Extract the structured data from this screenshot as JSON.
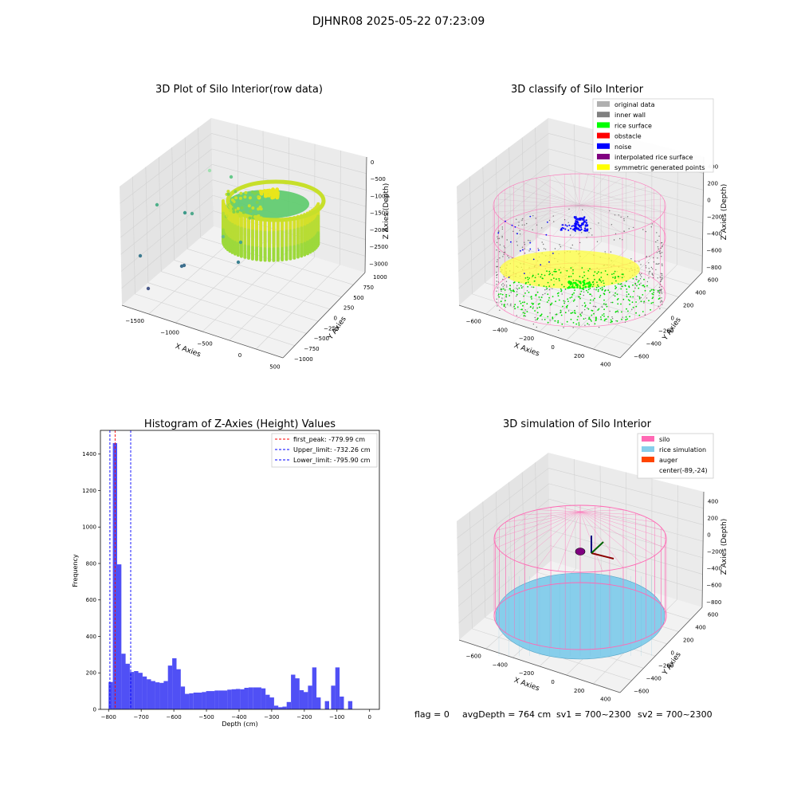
{
  "figure": {
    "suptitle": "DJHNR08 2025-05-22 07:23:09",
    "footer": {
      "flag": "flag = 0",
      "avg_depth": "avgDepth = 764 cm",
      "sv1": "sv1 = 700~2300",
      "sv2": "sv2 = 700~2300"
    }
  },
  "colors": {
    "silo_pink": "#ff69b4",
    "rice_green": "#00ff00",
    "noise_blue": "#0000ff",
    "obstacle_red": "#ff0000",
    "inner_wall_gray": "#808080",
    "original_gray": "#b0b0b0",
    "interpolated_purple": "#800080",
    "symmetric_yellow": "#ffff00",
    "rice_sim": "#87ceeb",
    "auger": "#ff4500",
    "hist_bar": "#5050f5"
  },
  "chart_data": [
    {
      "id": "raw",
      "type": "scatter",
      "title": "3D Plot of Silo Interior(row data)",
      "xlabel": "X Axies",
      "ylabel": "Y Axies",
      "zlabel": "Z Axies (Depth)",
      "xticks": [
        "−1500",
        "−1000",
        "−500",
        "0",
        "500"
      ],
      "yticks": [
        "−1000",
        "−750",
        "−500",
        "−250",
        "0",
        "250",
        "500",
        "750",
        "1000"
      ],
      "zticks": [
        "0",
        "−500",
        "−1000",
        "−1500",
        "−2000",
        "−2500",
        "−3000"
      ]
    },
    {
      "id": "classify",
      "type": "scatter",
      "title": "3D classify of Silo Interior",
      "xlabel": "X Axies",
      "ylabel": "Y Axies",
      "zlabel": "Z Axies (Depth)",
      "xticks": [
        "−600",
        "−400",
        "−200",
        "0",
        "200",
        "400"
      ],
      "yticks": [
        "−600",
        "−400",
        "−200",
        "0",
        "200",
        "400",
        "600"
      ],
      "zticks": [
        "400",
        "200",
        "0",
        "−200",
        "−400",
        "−600",
        "−800"
      ],
      "legend": [
        {
          "label": "original data",
          "color": "#b0b0b0"
        },
        {
          "label": "inner wall",
          "color": "#808080"
        },
        {
          "label": "rice surface",
          "color": "#00ff00"
        },
        {
          "label": "obstacle",
          "color": "#ff0000"
        },
        {
          "label": "noise",
          "color": "#0000ff"
        },
        {
          "label": "interpolated rice surface",
          "color": "#800080"
        },
        {
          "label": "symmetric generated points",
          "color": "#ffff00"
        }
      ]
    },
    {
      "id": "histogram",
      "type": "bar",
      "title": "Histogram of Z-Axies (Height) Values",
      "xlabel": "Depth (cm)",
      "ylabel": "Frequency",
      "xlim": [
        -825,
        30
      ],
      "ylim": [
        0,
        1530
      ],
      "xticks": [
        -800,
        -700,
        -600,
        -500,
        -400,
        -300,
        -200,
        -100,
        0
      ],
      "yticks": [
        0,
        200,
        400,
        600,
        800,
        1000,
        1200,
        1400
      ],
      "bin_width": 13.1,
      "bins": [
        {
          "x": -800,
          "v": 150
        },
        {
          "x": -787,
          "v": 1460
        },
        {
          "x": -774,
          "v": 795
        },
        {
          "x": -761,
          "v": 305
        },
        {
          "x": -748,
          "v": 250
        },
        {
          "x": -735,
          "v": 205
        },
        {
          "x": -722,
          "v": 210
        },
        {
          "x": -709,
          "v": 200
        },
        {
          "x": -696,
          "v": 180
        },
        {
          "x": -683,
          "v": 165
        },
        {
          "x": -670,
          "v": 155
        },
        {
          "x": -657,
          "v": 148
        },
        {
          "x": -644,
          "v": 145
        },
        {
          "x": -631,
          "v": 155
        },
        {
          "x": -618,
          "v": 240
        },
        {
          "x": -605,
          "v": 280
        },
        {
          "x": -592,
          "v": 220
        },
        {
          "x": -579,
          "v": 125
        },
        {
          "x": -566,
          "v": 85
        },
        {
          "x": -553,
          "v": 88
        },
        {
          "x": -540,
          "v": 92
        },
        {
          "x": -527,
          "v": 92
        },
        {
          "x": -514,
          "v": 95
        },
        {
          "x": -501,
          "v": 100
        },
        {
          "x": -488,
          "v": 100
        },
        {
          "x": -475,
          "v": 103
        },
        {
          "x": -462,
          "v": 103
        },
        {
          "x": -449,
          "v": 103
        },
        {
          "x": -436,
          "v": 108
        },
        {
          "x": -423,
          "v": 110
        },
        {
          "x": -410,
          "v": 112
        },
        {
          "x": -397,
          "v": 110
        },
        {
          "x": -384,
          "v": 118
        },
        {
          "x": -371,
          "v": 120
        },
        {
          "x": -358,
          "v": 120
        },
        {
          "x": -345,
          "v": 120
        },
        {
          "x": -332,
          "v": 115
        },
        {
          "x": -319,
          "v": 80
        },
        {
          "x": -306,
          "v": 65
        },
        {
          "x": -293,
          "v": 20
        },
        {
          "x": -280,
          "v": 12
        },
        {
          "x": -267,
          "v": 15
        },
        {
          "x": -254,
          "v": 40
        },
        {
          "x": -241,
          "v": 190
        },
        {
          "x": -228,
          "v": 170
        },
        {
          "x": -215,
          "v": 105
        },
        {
          "x": -202,
          "v": 95
        },
        {
          "x": -189,
          "v": 130
        },
        {
          "x": -176,
          "v": 230
        },
        {
          "x": -163,
          "v": 65
        },
        {
          "x": -137,
          "v": 45
        }
      ],
      "vlines": [
        {
          "x": -779.99,
          "color": "#ff0000",
          "label": "first_peak: -779.99 cm"
        },
        {
          "x": -732.26,
          "color": "#0000ff",
          "label": "Upper_limit: -732.26 cm"
        },
        {
          "x": -795.9,
          "color": "#0000ff",
          "label": "Lower_limit: -795.90 cm"
        }
      ]
    },
    {
      "id": "simulation",
      "type": "scatter",
      "title": "3D simulation of Silo Interior",
      "xlabel": "X Axies",
      "ylabel": "Y Axies",
      "zlabel": "Z Axies (Depth)",
      "xticks": [
        "−600",
        "−400",
        "−200",
        "0",
        "200",
        "400"
      ],
      "yticks": [
        "−600",
        "−400",
        "−200",
        "0",
        "200",
        "400",
        "600"
      ],
      "zticks": [
        "400",
        "200",
        "0",
        "−200",
        "−400",
        "−600",
        "−800"
      ],
      "legend": [
        {
          "label": "silo",
          "color": "#ff69b4"
        },
        {
          "label": "rice simulation",
          "color": "#87ceeb"
        },
        {
          "label": "auger",
          "color": "#ff4500"
        },
        {
          "label": "center(-89,-24)",
          "color": ""
        }
      ]
    }
  ]
}
